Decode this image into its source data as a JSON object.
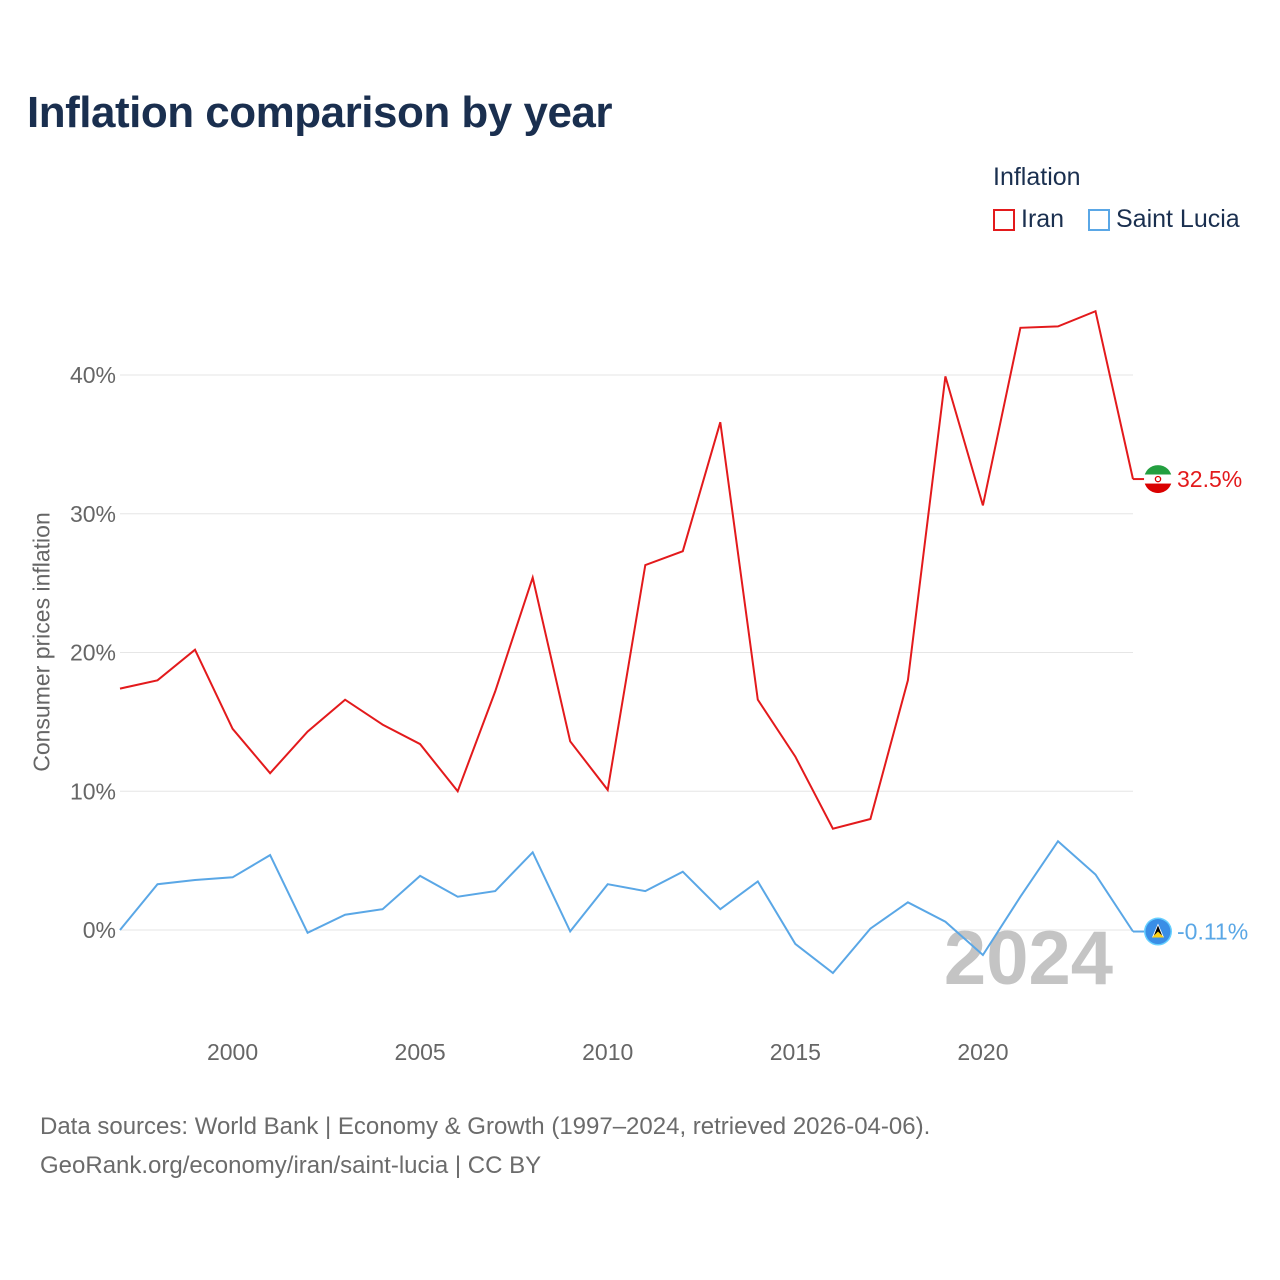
{
  "title": "Inflation comparison by year",
  "legend": {
    "title": "Inflation",
    "items": [
      {
        "name": "Iran",
        "color": "#e31a1c"
      },
      {
        "name": "Saint Lucia",
        "color": "#5aa7e6"
      }
    ]
  },
  "year_watermark": "2024",
  "source": {
    "line1": "Data sources: World Bank | Economy & Growth (1997–2024, retrieved 2026-04-06).",
    "line2": "GeoRank.org/economy/iran/saint-lucia | CC BY"
  },
  "chart_data": {
    "type": "line",
    "title": "Inflation comparison by year",
    "xlabel": "",
    "ylabel": "Consumer prices inflation",
    "x": [
      1997,
      1998,
      1999,
      2000,
      2001,
      2002,
      2003,
      2004,
      2005,
      2006,
      2007,
      2008,
      2009,
      2010,
      2011,
      2012,
      2013,
      2014,
      2015,
      2016,
      2017,
      2018,
      2019,
      2020,
      2021,
      2022,
      2023,
      2024
    ],
    "series": [
      {
        "name": "Iran",
        "color": "#e31a1c",
        "values": [
          17.4,
          18.0,
          20.2,
          14.5,
          11.3,
          14.3,
          16.6,
          14.8,
          13.4,
          10.0,
          17.2,
          25.4,
          13.6,
          10.1,
          26.3,
          27.3,
          36.6,
          16.6,
          12.5,
          7.3,
          8.0,
          18.0,
          39.9,
          30.6,
          43.4,
          43.5,
          44.6,
          32.5
        ],
        "end_label": "32.5%"
      },
      {
        "name": "Saint Lucia",
        "color": "#5aa7e6",
        "values": [
          0.0,
          3.3,
          3.6,
          3.8,
          5.4,
          -0.2,
          1.1,
          1.5,
          3.9,
          2.4,
          2.8,
          5.6,
          -0.1,
          3.3,
          2.8,
          4.2,
          1.5,
          3.5,
          -1.0,
          -3.1,
          0.1,
          2.0,
          0.6,
          -1.8,
          2.4,
          6.4,
          4.0,
          -0.11
        ],
        "end_label": "-0.11%"
      }
    ],
    "y_ticks": [
      0,
      10,
      20,
      30,
      40
    ],
    "y_tick_labels": [
      "0%",
      "10%",
      "20%",
      "30%",
      "40%"
    ],
    "x_ticks": [
      2000,
      2005,
      2010,
      2015,
      2020
    ],
    "x_tick_labels": [
      "2000",
      "2005",
      "2010",
      "2015",
      "2020"
    ],
    "xlim": [
      1997,
      2024
    ],
    "ylim": [
      -5,
      48
    ],
    "grid": true,
    "legend_position": "top-right"
  }
}
